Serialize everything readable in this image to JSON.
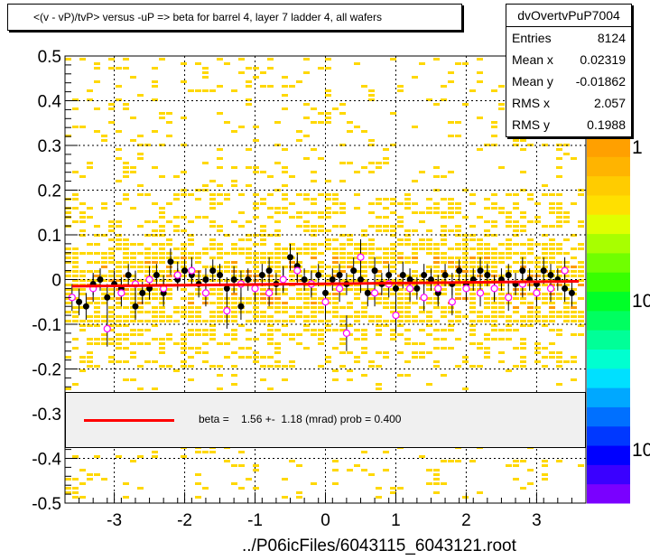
{
  "title": "<(v - vP)/tvP> versus  -uP => beta for barrel 4, layer 7 ladder 4, all wafers",
  "stats": {
    "name": "dvOvertvPuP7004",
    "rows": [
      {
        "label": "Entries",
        "value": "8124"
      },
      {
        "label": "Mean x",
        "value": "0.02319"
      },
      {
        "label": "Mean y",
        "value": "-0.01862"
      },
      {
        "label": "RMS x",
        "value": "2.057"
      },
      {
        "label": "RMS y",
        "value": "0.1988"
      }
    ]
  },
  "legend": {
    "text": "beta =    1.56 +-  1.18 (mrad) prob = 0.400",
    "line_color": "#ff0000"
  },
  "xlabel": "../P06icFiles/6043115_6043121.root",
  "palette_labels": [
    "1",
    "10",
    "10"
  ],
  "chart_data": {
    "type": "scatter",
    "xlim": [
      -3.7,
      3.7
    ],
    "ylim": [
      -0.5,
      0.5
    ],
    "x_ticks": [
      -3,
      -2,
      -1,
      0,
      1,
      2,
      3
    ],
    "y_ticks": [
      0.5,
      0.4,
      0.3,
      0.2,
      0.1,
      0,
      -0.1,
      -0.2,
      -0.3,
      -0.4,
      -0.5
    ],
    "x_tick_labels": [
      "-3",
      "-2",
      "-1",
      "0",
      "1",
      "2",
      "3"
    ],
    "y_tick_labels": [
      "0.5",
      "0.4",
      "0.3",
      "0.2",
      "0.1",
      "0",
      "-0.1",
      "-0.2",
      "-0.3",
      "-0.4",
      "-0.5"
    ],
    "grid": true,
    "fit_line": {
      "x": [
        -3.6,
        3.6
      ],
      "y": [
        -0.015,
        -0.004
      ],
      "color": "#ff0000"
    },
    "black_points": {
      "x": [
        -3.5,
        -3.4,
        -3.3,
        -3.2,
        -3.1,
        -3.0,
        -2.9,
        -2.8,
        -2.7,
        -2.6,
        -2.5,
        -2.4,
        -2.3,
        -2.2,
        -2.1,
        -2.0,
        -1.9,
        -1.8,
        -1.7,
        -1.6,
        -1.5,
        -1.4,
        -1.3,
        -1.2,
        -1.1,
        -1.0,
        -0.9,
        -0.8,
        -0.7,
        -0.6,
        -0.5,
        -0.4,
        -0.3,
        -0.2,
        -0.1,
        0.0,
        0.1,
        0.2,
        0.3,
        0.4,
        0.5,
        0.6,
        0.7,
        0.8,
        0.9,
        1.0,
        1.1,
        1.2,
        1.3,
        1.4,
        1.5,
        1.6,
        1.7,
        1.8,
        1.9,
        2.0,
        2.1,
        2.2,
        2.3,
        2.4,
        2.5,
        2.6,
        2.7,
        2.8,
        2.9,
        3.0,
        3.1,
        3.2,
        3.3,
        3.4,
        3.5
      ],
      "y": [
        -0.05,
        -0.06,
        -0.01,
        0.0,
        -0.04,
        -0.01,
        -0.02,
        0.01,
        -0.06,
        -0.03,
        -0.02,
        0.01,
        -0.03,
        0.04,
        0.0,
        0.02,
        0.01,
        -0.01,
        0.0,
        0.02,
        0.01,
        -0.02,
        0.0,
        -0.06,
        0.0,
        -0.02,
        0.01,
        0.02,
        -0.01,
        0.0,
        0.05,
        0.03,
        0.0,
        -0.01,
        0.01,
        -0.03,
        0.0,
        0.01,
        -0.01,
        0.02,
        0.0,
        -0.03,
        0.02,
        -0.01,
        0.01,
        -0.02,
        0.01,
        0.0,
        -0.02,
        0.01,
        0.0,
        -0.03,
        0.01,
        -0.01,
        0.02,
        -0.01,
        0.0,
        0.02,
        0.01,
        -0.02,
        0.0,
        0.01,
        -0.01,
        0.02,
        0.0,
        -0.01,
        0.02,
        0.01,
        0.0,
        -0.02,
        -0.03
      ],
      "err": [
        0.03,
        0.03,
        0.025,
        0.025,
        0.03,
        0.03,
        0.025,
        0.025,
        0.03,
        0.025,
        0.025,
        0.025,
        0.03,
        0.03,
        0.025,
        0.025,
        0.025,
        0.03,
        0.025,
        0.025,
        0.025,
        0.025,
        0.03,
        0.03,
        0.025,
        0.025,
        0.025,
        0.03,
        0.025,
        0.025,
        0.03,
        0.03,
        0.025,
        0.025,
        0.025,
        0.03,
        0.025,
        0.025,
        0.025,
        0.03,
        0.03,
        0.03,
        0.03,
        0.025,
        0.025,
        0.025,
        0.03,
        0.025,
        0.025,
        0.025,
        0.025,
        0.03,
        0.025,
        0.025,
        0.025,
        0.025,
        0.025,
        0.03,
        0.025,
        0.025,
        0.025,
        0.025,
        0.025,
        0.03,
        0.025,
        0.025,
        0.03,
        0.025,
        0.025,
        0.03,
        0.03
      ]
    },
    "pink_points": {
      "x": [
        -3.6,
        -3.3,
        -3.1,
        -2.9,
        -2.7,
        -2.5,
        -2.3,
        -2.1,
        -1.9,
        -1.7,
        -1.4,
        -1.2,
        -1.0,
        -0.8,
        -0.6,
        -0.4,
        -0.2,
        0.0,
        0.2,
        0.3,
        0.5,
        0.7,
        0.9,
        1.0,
        1.2,
        1.4,
        1.6,
        1.8,
        2.0,
        2.2,
        2.4,
        2.6,
        2.8,
        3.0,
        3.2,
        3.4
      ],
      "y": [
        -0.04,
        -0.02,
        -0.11,
        -0.03,
        -0.01,
        0.0,
        -0.02,
        0.01,
        0.02,
        -0.03,
        -0.07,
        -0.01,
        -0.02,
        -0.03,
        0.0,
        0.02,
        -0.01,
        -0.05,
        -0.02,
        -0.12,
        0.05,
        -0.03,
        -0.01,
        -0.08,
        -0.02,
        -0.04,
        -0.02,
        -0.05,
        -0.02,
        -0.03,
        -0.02,
        -0.04,
        -0.01,
        -0.03,
        -0.02,
        0.02
      ],
      "err": [
        0.03,
        0.03,
        0.04,
        0.03,
        0.03,
        0.03,
        0.03,
        0.03,
        0.03,
        0.03,
        0.04,
        0.03,
        0.03,
        0.03,
        0.03,
        0.03,
        0.03,
        0.04,
        0.03,
        0.04,
        0.04,
        0.03,
        0.03,
        0.04,
        0.03,
        0.03,
        0.03,
        0.03,
        0.03,
        0.03,
        0.03,
        0.03,
        0.03,
        0.03,
        0.03,
        0.03
      ]
    },
    "scatter_color": "#ffd800",
    "scatter_color_alt": "#ff9c00",
    "pink_color": "#ff00ff"
  }
}
